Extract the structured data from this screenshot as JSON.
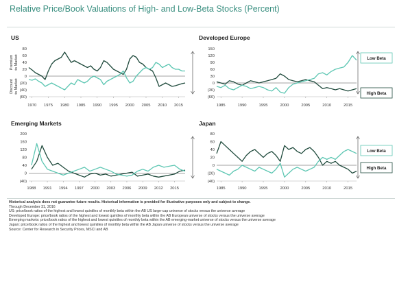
{
  "title": "Relative Price/Book Valuations of High- and Low-Beta Stocks (Percent)",
  "colors": {
    "title": "#3a8f80",
    "low_beta": "#5cc6b2",
    "high_beta": "#1f4a3c",
    "axis": "#555555"
  },
  "chart_data": [
    {
      "type": "line",
      "title": "US",
      "ylabel_top": "Premium to Market",
      "ylabel_bottom": "Discount to Market",
      "ylim": [
        -60,
        80
      ],
      "yticks": [
        80,
        60,
        40,
        20,
        0,
        -20,
        -40,
        -60
      ],
      "ytick_labels": [
        "80",
        "60",
        "40",
        "20",
        "0",
        "(20)",
        "(40)",
        "(60)"
      ],
      "xlim": [
        1969,
        2017
      ],
      "xticks": [
        1970,
        1975,
        1980,
        1985,
        1990,
        1995,
        2000,
        2005,
        2010,
        2015
      ],
      "series": [
        {
          "name": "",
          "role": "high_beta",
          "x": [
            1969,
            1970,
            1971,
            1972,
            1973,
            1974,
            1975,
            1976,
            1977,
            1978,
            1979,
            1980,
            1981,
            1982,
            1983,
            1984,
            1985,
            1986,
            1987,
            1988,
            1989,
            1990,
            1991,
            1992,
            1993,
            1994,
            1995,
            1996,
            1997,
            1998,
            1999,
            2000,
            2001,
            2002,
            2003,
            2004,
            2005,
            2006,
            2007,
            2008,
            2009,
            2010,
            2011,
            2012,
            2013,
            2014,
            2015,
            2016,
            2017
          ],
          "values": [
            25,
            18,
            10,
            5,
            0,
            -10,
            15,
            35,
            45,
            50,
            55,
            70,
            55,
            40,
            45,
            40,
            35,
            30,
            25,
            30,
            20,
            15,
            25,
            45,
            40,
            30,
            20,
            15,
            10,
            5,
            20,
            50,
            60,
            55,
            40,
            35,
            25,
            20,
            15,
            -5,
            -30,
            -25,
            -20,
            -25,
            -30,
            -28,
            -25,
            -22,
            -20
          ]
        },
        {
          "name": "",
          "role": "low_beta",
          "x": [
            1969,
            1970,
            1971,
            1972,
            1973,
            1974,
            1975,
            1976,
            1977,
            1978,
            1979,
            1980,
            1981,
            1982,
            1983,
            1984,
            1985,
            1986,
            1987,
            1988,
            1989,
            1990,
            1991,
            1992,
            1993,
            1994,
            1995,
            1996,
            1997,
            1998,
            1999,
            2000,
            2001,
            2002,
            2003,
            2004,
            2005,
            2006,
            2007,
            2008,
            2009,
            2010,
            2011,
            2012,
            2013,
            2014,
            2015,
            2016,
            2017
          ],
          "values": [
            -10,
            -12,
            -8,
            -15,
            -20,
            -30,
            -25,
            -20,
            -25,
            -30,
            -35,
            -40,
            -30,
            -20,
            -25,
            -10,
            -15,
            -20,
            -15,
            -5,
            0,
            -5,
            -10,
            -25,
            -15,
            -10,
            -5,
            0,
            5,
            15,
            -5,
            -20,
            -15,
            0,
            10,
            20,
            25,
            20,
            25,
            40,
            35,
            25,
            30,
            35,
            25,
            20,
            20,
            15,
            15
          ]
        }
      ],
      "annotations": []
    },
    {
      "type": "line",
      "title": "Developed Europe",
      "ylim": [
        -60,
        150
      ],
      "yticks": [
        150,
        120,
        90,
        60,
        30,
        0,
        -30,
        -60
      ],
      "ytick_labels": [
        "150",
        "120",
        "90",
        "60",
        "30",
        "0",
        "(30)",
        "(60)"
      ],
      "xlim": [
        1984,
        2017
      ],
      "xticks": [
        1985,
        1990,
        1995,
        2000,
        2005,
        2010,
        2015
      ],
      "series": [
        {
          "name": "",
          "role": "high_beta",
          "x": [
            1984,
            1985,
            1986,
            1987,
            1988,
            1989,
            1990,
            1991,
            1992,
            1993,
            1994,
            1995,
            1996,
            1997,
            1998,
            1999,
            2000,
            2001,
            2002,
            2003,
            2004,
            2005,
            2006,
            2007,
            2008,
            2009,
            2010,
            2011,
            2012,
            2013,
            2014,
            2015,
            2016,
            2017
          ],
          "values": [
            5,
            0,
            -5,
            10,
            5,
            -5,
            -10,
            0,
            10,
            5,
            0,
            5,
            10,
            15,
            20,
            40,
            30,
            15,
            10,
            5,
            10,
            15,
            10,
            5,
            -10,
            -25,
            -20,
            -25,
            -30,
            -25,
            -30,
            -35,
            -30,
            -25
          ]
        },
        {
          "name": "",
          "role": "low_beta",
          "x": [
            1984,
            1985,
            1986,
            1987,
            1988,
            1989,
            1990,
            1991,
            1992,
            1993,
            1994,
            1995,
            1996,
            1997,
            1998,
            1999,
            2000,
            2001,
            2002,
            2003,
            2004,
            2005,
            2006,
            2007,
            2008,
            2009,
            2010,
            2011,
            2012,
            2013,
            2014,
            2015,
            2016,
            2017
          ],
          "values": [
            -15,
            -20,
            -10,
            -25,
            -30,
            -20,
            -10,
            -15,
            -25,
            -20,
            -15,
            -20,
            -30,
            -35,
            -20,
            -40,
            -45,
            -20,
            -5,
            0,
            5,
            10,
            15,
            20,
            40,
            45,
            35,
            50,
            60,
            65,
            70,
            90,
            120,
            100
          ]
        }
      ],
      "annotations": [
        "Low Beta",
        "High Beta"
      ]
    },
    {
      "type": "line",
      "title": "Emerging Markets",
      "ylim": [
        -40,
        200
      ],
      "yticks": [
        200,
        160,
        120,
        80,
        40,
        0,
        -40
      ],
      "ytick_labels": [
        "200",
        "160",
        "120",
        "80",
        "40",
        "0",
        "(40)"
      ],
      "xlim": [
        1987.5,
        2017
      ],
      "xticks": [
        1988,
        1991,
        1994,
        1997,
        2000,
        2003,
        2006,
        2009,
        2012,
        2015
      ],
      "series": [
        {
          "name": "",
          "role": "high_beta",
          "x": [
            1988,
            1989,
            1990,
            1991,
            1992,
            1993,
            1994,
            1995,
            1996,
            1997,
            1998,
            1999,
            2000,
            2001,
            2002,
            2003,
            2004,
            2005,
            2006,
            2007,
            2008,
            2009,
            2010,
            2011,
            2012,
            2013,
            2014,
            2015,
            2016,
            2017
          ],
          "values": [
            20,
            60,
            140,
            80,
            40,
            50,
            30,
            10,
            0,
            -10,
            -20,
            -5,
            0,
            -10,
            -5,
            -15,
            -10,
            -5,
            0,
            5,
            -15,
            -10,
            -5,
            -15,
            -20,
            -15,
            -10,
            -5,
            10,
            15
          ]
        },
        {
          "name": "",
          "role": "low_beta",
          "x": [
            1988,
            1989,
            1990,
            1991,
            1992,
            1993,
            1994,
            1995,
            1996,
            1997,
            1998,
            1999,
            2000,
            2001,
            2002,
            2003,
            2004,
            2005,
            2006,
            2007,
            2008,
            2009,
            2010,
            2011,
            2012,
            2013,
            2014,
            2015,
            2016,
            2017
          ],
          "values": [
            40,
            150,
            60,
            20,
            10,
            0,
            -10,
            0,
            10,
            20,
            30,
            10,
            20,
            30,
            20,
            10,
            -5,
            -10,
            -15,
            -10,
            10,
            20,
            10,
            30,
            40,
            30,
            35,
            40,
            20,
            10
          ]
        }
      ],
      "annotations": []
    },
    {
      "type": "line",
      "title": "Japan",
      "ylim": [
        -40,
        80
      ],
      "yticks": [
        80,
        60,
        40,
        20,
        0,
        -20,
        -40
      ],
      "ytick_labels": [
        "80",
        "60",
        "40",
        "20",
        "0",
        "(20)",
        "(40)"
      ],
      "xlim": [
        1984,
        2017
      ],
      "xticks": [
        1985,
        1990,
        1995,
        2000,
        2005,
        2010,
        2015
      ],
      "series": [
        {
          "name": "",
          "role": "high_beta",
          "x": [
            1984,
            1985,
            1986,
            1987,
            1988,
            1989,
            1990,
            1991,
            1992,
            1993,
            1994,
            1995,
            1996,
            1997,
            1998,
            1999,
            2000,
            2001,
            2002,
            2003,
            2004,
            2005,
            2006,
            2007,
            2008,
            2009,
            2010,
            2011,
            2012,
            2013,
            2014,
            2015,
            2016,
            2017
          ],
          "values": [
            30,
            60,
            50,
            40,
            30,
            20,
            10,
            25,
            35,
            40,
            30,
            20,
            30,
            35,
            25,
            10,
            50,
            40,
            45,
            35,
            30,
            40,
            45,
            35,
            20,
            0,
            10,
            5,
            10,
            0,
            -5,
            -10,
            -20,
            -15
          ]
        },
        {
          "name": "",
          "role": "low_beta",
          "x": [
            1984,
            1985,
            1986,
            1987,
            1988,
            1989,
            1990,
            1991,
            1992,
            1993,
            1994,
            1995,
            1996,
            1997,
            1998,
            1999,
            2000,
            2001,
            2002,
            2003,
            2004,
            2005,
            2006,
            2007,
            2008,
            2009,
            2010,
            2011,
            2012,
            2013,
            2014,
            2015,
            2016,
            2017
          ],
          "values": [
            -10,
            -15,
            -20,
            -25,
            -15,
            -10,
            0,
            -5,
            -10,
            -15,
            -5,
            -10,
            -15,
            -20,
            -10,
            5,
            -30,
            -20,
            -10,
            -5,
            -10,
            -15,
            -10,
            -5,
            10,
            20,
            15,
            20,
            15,
            25,
            35,
            40,
            35,
            30
          ]
        }
      ],
      "annotations": [
        "Low Beta",
        "High Beta"
      ]
    }
  ],
  "notes": {
    "disclaimer": "Historical analysis does not guarantee future results. Historical information is provided for illustrative purposes only and subject to change.",
    "lines": [
      "Through December 31, 2016",
      "US: price/book ratios of the highest and lowest quintiles of monthly beta within the AB US large-cap universe of stocks versus the universe average",
      "Developed Europe: price/book ratios of the highest and lowest quintiles of monthly beta within the AB European universe of stocks versus the universe average",
      "Emerging markets: price/book ratios of the highest and lowest quintiles of monthly beta within the AB emerging-market universe of stocks versus the universe average",
      "Japan: price/book ratios of the highest and lowest quintiles of monthly beta within the AB Japan universe of stocks versus the universe average",
      "Source: Center for Research in Security Prices, MSCI and AB"
    ]
  }
}
